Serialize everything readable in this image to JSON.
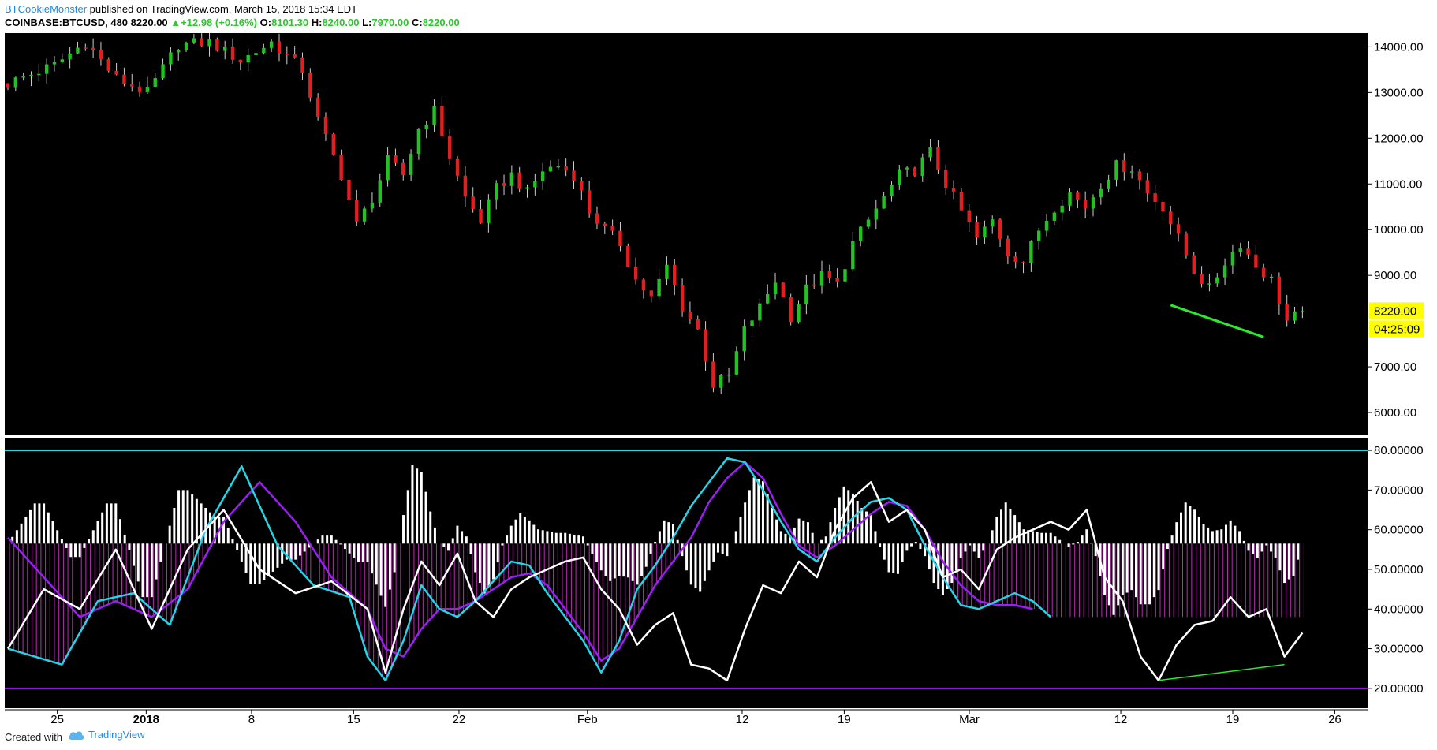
{
  "header": {
    "author": "BTCookieMonster",
    "published": "published on TradingView.com, March 15, 2018 15:34 EDT",
    "symbol": "COINBASE:BTCUSD, 480",
    "price": "8220.00",
    "change_arrow": "▲",
    "change": "+12.98 (+0.16%)",
    "o_label": "O:",
    "o": "8101.30",
    "h_label": "H:",
    "h": "8240.00",
    "l_label": "L:",
    "l": "7970.00",
    "c_label": "C:",
    "c": "8220.00"
  },
  "footer": {
    "created": "Created with",
    "brand": "TradingView",
    "logo_icon": "cloud-logo-icon"
  },
  "colors": {
    "up": "#22c222",
    "down": "#e41e1e",
    "background": "#000000",
    "cyan": "#25d4e6",
    "purple": "#9a1ff2",
    "white": "#ffffff",
    "magenta": "#b92eb2",
    "green_line": "#2ee82e",
    "label_bg": "#ffff00"
  },
  "chart_data": [
    {
      "type": "candlestick",
      "title": "",
      "ylabel": "",
      "yticks": [
        "14000.00",
        "13000.00",
        "12000.00",
        "11000.00",
        "10000.00",
        "9000.00",
        "7000.00",
        "6000.00"
      ],
      "ylim": [
        5500,
        14300
      ],
      "xticks": [
        "25",
        "2018",
        "8",
        "15",
        "22",
        "Feb",
        "12",
        "19",
        "Mar",
        "12",
        "19",
        "26"
      ],
      "last_price_label": "8220.00",
      "countdown_label": "04:25:09",
      "close_path": [
        [
          0,
          13200
        ],
        [
          6,
          13600
        ],
        [
          10,
          14100
        ],
        [
          14,
          13300
        ],
        [
          18,
          13000
        ],
        [
          22,
          14050
        ],
        [
          26,
          14100
        ],
        [
          30,
          13700
        ],
        [
          34,
          14100
        ],
        [
          38,
          13500
        ],
        [
          40,
          12400
        ],
        [
          43,
          11200
        ],
        [
          45,
          10100
        ],
        [
          47,
          10700
        ],
        [
          49,
          11500
        ],
        [
          51,
          11200
        ],
        [
          53,
          12200
        ],
        [
          55,
          12600
        ],
        [
          57,
          11600
        ],
        [
          59,
          10700
        ],
        [
          61,
          10200
        ],
        [
          63,
          10900
        ],
        [
          65,
          11200
        ],
        [
          67,
          10800
        ],
        [
          69,
          11300
        ],
        [
          71,
          11400
        ],
        [
          73,
          11200
        ],
        [
          75,
          10400
        ],
        [
          77,
          10000
        ],
        [
          79,
          9700
        ],
        [
          81,
          8900
        ],
        [
          83,
          8500
        ],
        [
          85,
          9200
        ],
        [
          87,
          8300
        ],
        [
          89,
          7800
        ],
        [
          91,
          6600
        ],
        [
          93,
          6800
        ],
        [
          95,
          7800
        ],
        [
          97,
          8300
        ],
        [
          99,
          8900
        ],
        [
          101,
          8100
        ],
        [
          103,
          8700
        ],
        [
          105,
          9000
        ],
        [
          107,
          8800
        ],
        [
          109,
          9700
        ],
        [
          111,
          10200
        ],
        [
          113,
          10700
        ],
        [
          115,
          11200
        ],
        [
          117,
          11300
        ],
        [
          119,
          11700
        ],
        [
          121,
          11000
        ],
        [
          123,
          10400
        ],
        [
          125,
          9800
        ],
        [
          127,
          10200
        ],
        [
          129,
          9500
        ],
        [
          131,
          9300
        ],
        [
          133,
          10000
        ],
        [
          135,
          10500
        ],
        [
          137,
          10800
        ],
        [
          139,
          10500
        ],
        [
          141,
          11000
        ],
        [
          143,
          11400
        ],
        [
          145,
          11350
        ],
        [
          147,
          10800
        ],
        [
          149,
          10500
        ],
        [
          151,
          9800
        ],
        [
          153,
          9100
        ],
        [
          155,
          8700
        ],
        [
          157,
          9300
        ],
        [
          159,
          9700
        ],
        [
          161,
          9200
        ],
        [
          163,
          8900
        ],
        [
          165,
          8000
        ],
        [
          167,
          8220
        ]
      ],
      "divergence_line": [
        [
          150,
          8350
        ],
        [
          162,
          7650
        ]
      ]
    },
    {
      "type": "line",
      "title": "",
      "ylabel": "",
      "yticks": [
        "80.00000",
        "70.00000",
        "60.00000",
        "50.00000",
        "40.00000",
        "30.00000",
        "20.00000"
      ],
      "ylim": [
        15,
        83
      ],
      "levels": [
        80,
        20
      ],
      "zero": 56.5,
      "series": [
        {
          "color": "#ffffff",
          "values": [
            [
              0,
              30
            ],
            [
              4,
              45
            ],
            [
              8,
              40
            ],
            [
              12,
              55
            ],
            [
              16,
              35
            ],
            [
              20,
              55
            ],
            [
              24,
              65
            ],
            [
              28,
              50
            ],
            [
              32,
              44
            ],
            [
              36,
              47
            ],
            [
              40,
              40
            ],
            [
              42,
              24
            ],
            [
              44,
              40
            ],
            [
              46,
              52
            ],
            [
              48,
              46
            ],
            [
              50,
              54
            ],
            [
              52,
              42
            ],
            [
              54,
              38
            ],
            [
              56,
              45
            ],
            [
              58,
              48
            ],
            [
              60,
              50
            ],
            [
              62,
              52
            ],
            [
              64,
              53
            ],
            [
              66,
              45
            ],
            [
              68,
              40
            ],
            [
              70,
              31
            ],
            [
              72,
              36
            ],
            [
              74,
              39
            ],
            [
              76,
              26
            ],
            [
              78,
              25
            ],
            [
              80,
              22
            ],
            [
              82,
              35
            ],
            [
              84,
              46
            ],
            [
              86,
              44
            ],
            [
              88,
              52
            ],
            [
              90,
              48
            ],
            [
              92,
              60
            ],
            [
              94,
              68
            ],
            [
              96,
              72
            ],
            [
              98,
              62
            ],
            [
              100,
              65
            ],
            [
              102,
              60
            ],
            [
              104,
              48
            ],
            [
              106,
              50
            ],
            [
              108,
              45
            ],
            [
              110,
              55
            ],
            [
              112,
              58
            ],
            [
              114,
              60
            ],
            [
              116,
              62
            ],
            [
              118,
              60
            ],
            [
              120,
              65
            ],
            [
              122,
              48
            ],
            [
              124,
              42
            ],
            [
              126,
              28
            ],
            [
              128,
              22
            ],
            [
              130,
              31
            ],
            [
              132,
              36
            ],
            [
              134,
              37
            ],
            [
              136,
              43
            ],
            [
              138,
              38
            ],
            [
              140,
              40
            ],
            [
              142,
              28
            ],
            [
              144,
              34
            ]
          ]
        },
        {
          "color": "#25d4e6",
          "values": [
            [
              0,
              30
            ],
            [
              6,
              26
            ],
            [
              10,
              42
            ],
            [
              14,
              44
            ],
            [
              18,
              36
            ],
            [
              22,
              60
            ],
            [
              26,
              76
            ],
            [
              30,
              56
            ],
            [
              34,
              46
            ],
            [
              38,
              43
            ],
            [
              40,
              28
            ],
            [
              42,
              22
            ],
            [
              44,
              32
            ],
            [
              46,
              46
            ],
            [
              48,
              40
            ],
            [
              50,
              38
            ],
            [
              52,
              42
            ],
            [
              54,
              47
            ],
            [
              56,
              52
            ],
            [
              58,
              51
            ],
            [
              60,
              44
            ],
            [
              62,
              38
            ],
            [
              64,
              32
            ],
            [
              66,
              24
            ],
            [
              68,
              32
            ],
            [
              70,
              45
            ],
            [
              72,
              51
            ],
            [
              74,
              58
            ],
            [
              76,
              66
            ],
            [
              78,
              72
            ],
            [
              80,
              78
            ],
            [
              82,
              77
            ],
            [
              84,
              70
            ],
            [
              86,
              62
            ],
            [
              88,
              55
            ],
            [
              90,
              52
            ],
            [
              92,
              58
            ],
            [
              94,
              63
            ],
            [
              96,
              67
            ],
            [
              98,
              68
            ],
            [
              100,
              65
            ],
            [
              102,
              56
            ],
            [
              104,
              48
            ],
            [
              106,
              41
            ],
            [
              108,
              40
            ],
            [
              110,
              42
            ],
            [
              112,
              44
            ],
            [
              114,
              42
            ],
            [
              116,
              38
            ]
          ]
        },
        {
          "color": "#9a1ff2",
          "values": [
            [
              0,
              58
            ],
            [
              4,
              48
            ],
            [
              8,
              38
            ],
            [
              12,
              42
            ],
            [
              16,
              38
            ],
            [
              20,
              45
            ],
            [
              24,
              62
            ],
            [
              28,
              72
            ],
            [
              32,
              62
            ],
            [
              36,
              48
            ],
            [
              40,
              40
            ],
            [
              42,
              30
            ],
            [
              44,
              28
            ],
            [
              46,
              35
            ],
            [
              48,
              40
            ],
            [
              50,
              40
            ],
            [
              52,
              42
            ],
            [
              54,
              45
            ],
            [
              56,
              48
            ],
            [
              58,
              49
            ],
            [
              60,
              46
            ],
            [
              62,
              40
            ],
            [
              64,
              34
            ],
            [
              66,
              27
            ],
            [
              68,
              30
            ],
            [
              70,
              38
            ],
            [
              72,
              46
            ],
            [
              74,
              52
            ],
            [
              76,
              58
            ],
            [
              78,
              67
            ],
            [
              80,
              73
            ],
            [
              82,
              77
            ],
            [
              84,
              73
            ],
            [
              86,
              64
            ],
            [
              88,
              56
            ],
            [
              90,
              53
            ],
            [
              92,
              56
            ],
            [
              94,
              60
            ],
            [
              96,
              64
            ],
            [
              98,
              67
            ],
            [
              100,
              66
            ],
            [
              102,
              60
            ],
            [
              104,
              52
            ],
            [
              106,
              46
            ],
            [
              108,
              42
            ],
            [
              110,
              41
            ],
            [
              112,
              41
            ],
            [
              114,
              40
            ]
          ]
        }
      ],
      "divergence_line": [
        [
          128,
          22
        ],
        [
          142,
          26
        ]
      ]
    }
  ]
}
